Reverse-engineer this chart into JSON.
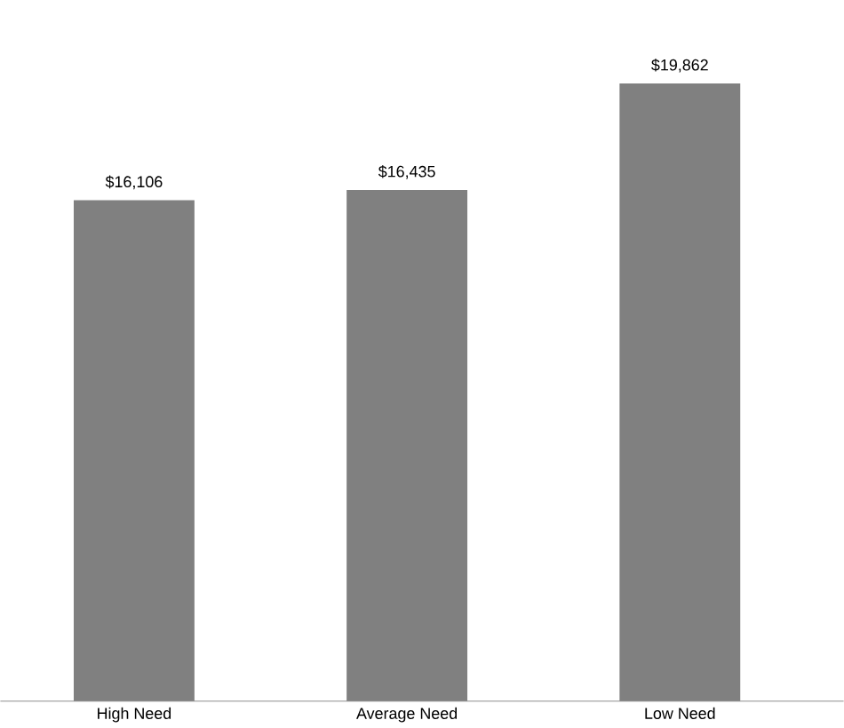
{
  "chart_data": {
    "type": "bar",
    "categories": [
      "High Need",
      "Average Need",
      "Low Need"
    ],
    "values": [
      16106,
      16435,
      19862
    ],
    "value_labels": [
      "$16,106",
      "$16,435",
      "$19,862"
    ],
    "color": "#808080"
  }
}
